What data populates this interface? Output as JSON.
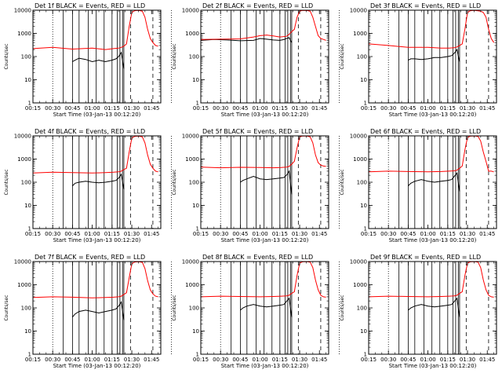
{
  "chart_data": {
    "type": "line",
    "layout": "3x3 grid",
    "yscale": "log",
    "ylim": [
      1,
      10000
    ],
    "xlim": [
      "00:15",
      "01:52"
    ],
    "xlabel": "Start Time (03-Jan-13 00:12:20)",
    "ylabel": "Counts/sec",
    "x_tick_labels": [
      "00:15",
      "00:30",
      "00:45",
      "01:00",
      "01:15",
      "01:30",
      "01:45"
    ],
    "y_tick_labels": [
      "1",
      "10",
      "100",
      "1000",
      "10000"
    ],
    "series_colors": {
      "events": "#000000",
      "lld": "#ff0000"
    },
    "markers": {
      "dotted_vertical_min": [
        30,
        120
      ],
      "solid_vertical_min": [
        38,
        45,
        50,
        57,
        63,
        69,
        75,
        79,
        81,
        83,
        84
      ],
      "dashed_vertical_min": [
        89,
        106
      ]
    },
    "panels": [
      {
        "title": "Det 1f BLACK = Events, RED = LLD",
        "series": [
          {
            "name": "Events",
            "x": [
              45,
              47,
              50,
              55,
              60,
              65,
              70,
              75,
              78,
              80,
              82,
              84
            ],
            "y": [
              60,
              70,
              85,
              75,
              60,
              70,
              60,
              70,
              80,
              100,
              150,
              30
            ]
          },
          {
            "name": "LLD",
            "x": [
              15,
              30,
              45,
              60,
              70,
              76,
              80,
              82,
              84,
              86,
              88,
              90,
              92,
              94,
              96,
              98,
              100,
              102,
              104,
              106,
              108,
              110
            ],
            "y": [
              220,
              250,
              210,
              230,
              200,
              220,
              230,
              250,
              280,
              350,
              2000,
              8000,
              9500,
              9800,
              9600,
              9000,
              5000,
              1500,
              600,
              400,
              300,
              280
            ]
          }
        ]
      },
      {
        "title": "Det 2f BLACK = Events, RED = LLD",
        "series": [
          {
            "name": "Events",
            "x": [
              15,
              25,
              35,
              45,
              55,
              60,
              65,
              70,
              75,
              78,
              80,
              82,
              84
            ],
            "y": [
              500,
              550,
              520,
              480,
              500,
              600,
              560,
              520,
              500,
              540,
              600,
              650,
              400
            ]
          },
          {
            "name": "LLD",
            "x": [
              15,
              30,
              45,
              55,
              60,
              65,
              70,
              75,
              80,
              82,
              84,
              86,
              88,
              90,
              92,
              94,
              96,
              98,
              100,
              102,
              104,
              106,
              108,
              110
            ],
            "y": [
              550,
              560,
              580,
              700,
              800,
              850,
              780,
              700,
              750,
              900,
              1200,
              1500,
              5000,
              9000,
              9800,
              9700,
              9600,
              9000,
              5000,
              2000,
              800,
              600,
              550,
              500
            ]
          }
        ]
      },
      {
        "title": "Det 3f BLACK = Events, RED = LLD",
        "series": [
          {
            "name": "Events",
            "x": [
              45,
              47,
              50,
              55,
              60,
              65,
              70,
              75,
              78,
              80,
              82,
              84
            ],
            "y": [
              70,
              80,
              80,
              75,
              80,
              90,
              90,
              100,
              110,
              140,
              200,
              60
            ]
          },
          {
            "name": "LLD",
            "x": [
              15,
              30,
              45,
              60,
              70,
              76,
              80,
              82,
              84,
              86,
              88,
              90,
              92,
              94,
              96,
              98,
              100,
              102,
              104,
              106,
              108,
              110
            ],
            "y": [
              350,
              300,
              250,
              250,
              230,
              230,
              240,
              260,
              300,
              350,
              1500,
              8000,
              9500,
              9800,
              9700,
              9500,
              9000,
              8000,
              5000,
              1500,
              600,
              400
            ]
          }
        ]
      },
      {
        "title": "Det 4f BLACK = Events, RED = LLD",
        "series": [
          {
            "name": "Events",
            "x": [
              45,
              47,
              50,
              55,
              60,
              65,
              70,
              75,
              78,
              80,
              82,
              84
            ],
            "y": [
              70,
              90,
              100,
              110,
              100,
              95,
              100,
              110,
              120,
              150,
              220,
              50
            ]
          },
          {
            "name": "LLD",
            "x": [
              15,
              30,
              45,
              60,
              70,
              76,
              80,
              82,
              84,
              86,
              88,
              90,
              92,
              94,
              96,
              98,
              100,
              102,
              104,
              106,
              108,
              110
            ],
            "y": [
              250,
              270,
              260,
              250,
              260,
              270,
              280,
              300,
              350,
              400,
              2000,
              8000,
              9500,
              9800,
              9600,
              9000,
              5000,
              1500,
              600,
              400,
              300,
              280
            ]
          }
        ]
      },
      {
        "title": "Det 5f BLACK = Events, RED = LLD",
        "series": [
          {
            "name": "Events",
            "x": [
              45,
              47,
              50,
              55,
              60,
              65,
              70,
              75,
              78,
              80,
              82,
              84
            ],
            "y": [
              100,
              120,
              140,
              180,
              140,
              130,
              140,
              150,
              160,
              200,
              300,
              30
            ]
          },
          {
            "name": "LLD",
            "x": [
              15,
              30,
              45,
              60,
              70,
              76,
              80,
              82,
              84,
              86,
              88,
              90,
              92,
              94,
              96,
              98,
              100,
              102,
              104,
              106,
              108,
              110
            ],
            "y": [
              450,
              420,
              440,
              430,
              420,
              430,
              450,
              480,
              600,
              800,
              3000,
              9000,
              9800,
              9900,
              9700,
              9000,
              5000,
              1500,
              700,
              550,
              500,
              480
            ]
          }
        ]
      },
      {
        "title": "Det 6f BLACK = Events, RED = LLD",
        "series": [
          {
            "name": "Events",
            "x": [
              45,
              47,
              50,
              55,
              60,
              65,
              70,
              75,
              78,
              80,
              82,
              84
            ],
            "y": [
              70,
              90,
              110,
              130,
              110,
              100,
              110,
              120,
              130,
              180,
              250,
              40
            ]
          },
          {
            "name": "LLD",
            "x": [
              15,
              30,
              45,
              60,
              70,
              76,
              80,
              82,
              84,
              86,
              88,
              90,
              92,
              94,
              96,
              98,
              100,
              102,
              104,
              106,
              108,
              110
            ],
            "y": [
              280,
              300,
              290,
              280,
              290,
              300,
              310,
              330,
              400,
              500,
              2500,
              8500,
              9700,
              9900,
              9800,
              9500,
              6000,
              2000,
              800,
              300,
              300,
              280
            ]
          }
        ]
      },
      {
        "title": "Det 7f BLACK = Events, RED = LLD",
        "series": [
          {
            "name": "Events",
            "x": [
              45,
              47,
              50,
              55,
              60,
              65,
              70,
              75,
              78,
              80,
              82,
              84
            ],
            "y": [
              40,
              55,
              70,
              80,
              70,
              60,
              70,
              80,
              90,
              120,
              180,
              30
            ]
          },
          {
            "name": "LLD",
            "x": [
              15,
              30,
              45,
              60,
              70,
              76,
              80,
              82,
              84,
              86,
              88,
              90,
              92,
              94,
              96,
              98,
              100,
              102,
              104,
              106,
              108,
              110
            ],
            "y": [
              280,
              300,
              290,
              270,
              280,
              290,
              300,
              320,
              380,
              450,
              2000,
              8000,
              9500,
              9800,
              9700,
              9200,
              5000,
              1500,
              600,
              400,
              320,
              300
            ]
          }
        ]
      },
      {
        "title": "Det 8f BLACK = Events, RED = LLD",
        "series": [
          {
            "name": "Events",
            "x": [
              45,
              47,
              50,
              55,
              60,
              65,
              70,
              75,
              78,
              80,
              82,
              84
            ],
            "y": [
              80,
              100,
              120,
              140,
              120,
              110,
              120,
              130,
              140,
              190,
              260,
              40
            ]
          },
          {
            "name": "LLD",
            "x": [
              15,
              30,
              45,
              60,
              70,
              76,
              80,
              82,
              84,
              86,
              88,
              90,
              92,
              94,
              96,
              98,
              100,
              102,
              104,
              106,
              108,
              110
            ],
            "y": [
              300,
              320,
              310,
              300,
              310,
              320,
              330,
              350,
              420,
              500,
              2500,
              8500,
              9700,
              9900,
              9800,
              9400,
              5500,
              1600,
              600,
              350,
              300,
              290
            ]
          }
        ]
      },
      {
        "title": "Det 9f BLACK = Events, RED = LLD",
        "series": [
          {
            "name": "Events",
            "x": [
              45,
              47,
              50,
              55,
              60,
              65,
              70,
              75,
              78,
              80,
              82,
              84
            ],
            "y": [
              80,
              100,
              120,
              140,
              120,
              110,
              120,
              130,
              140,
              190,
              260,
              40
            ]
          },
          {
            "name": "LLD",
            "x": [
              15,
              30,
              45,
              60,
              70,
              76,
              80,
              82,
              84,
              86,
              88,
              90,
              92,
              94,
              96,
              98,
              100,
              102,
              104,
              106,
              108,
              110
            ],
            "y": [
              300,
              320,
              310,
              300,
              310,
              320,
              330,
              350,
              420,
              500,
              2500,
              8500,
              9700,
              9900,
              9800,
              9400,
              5500,
              1600,
              600,
              350,
              300,
              290
            ]
          }
        ]
      }
    ]
  }
}
